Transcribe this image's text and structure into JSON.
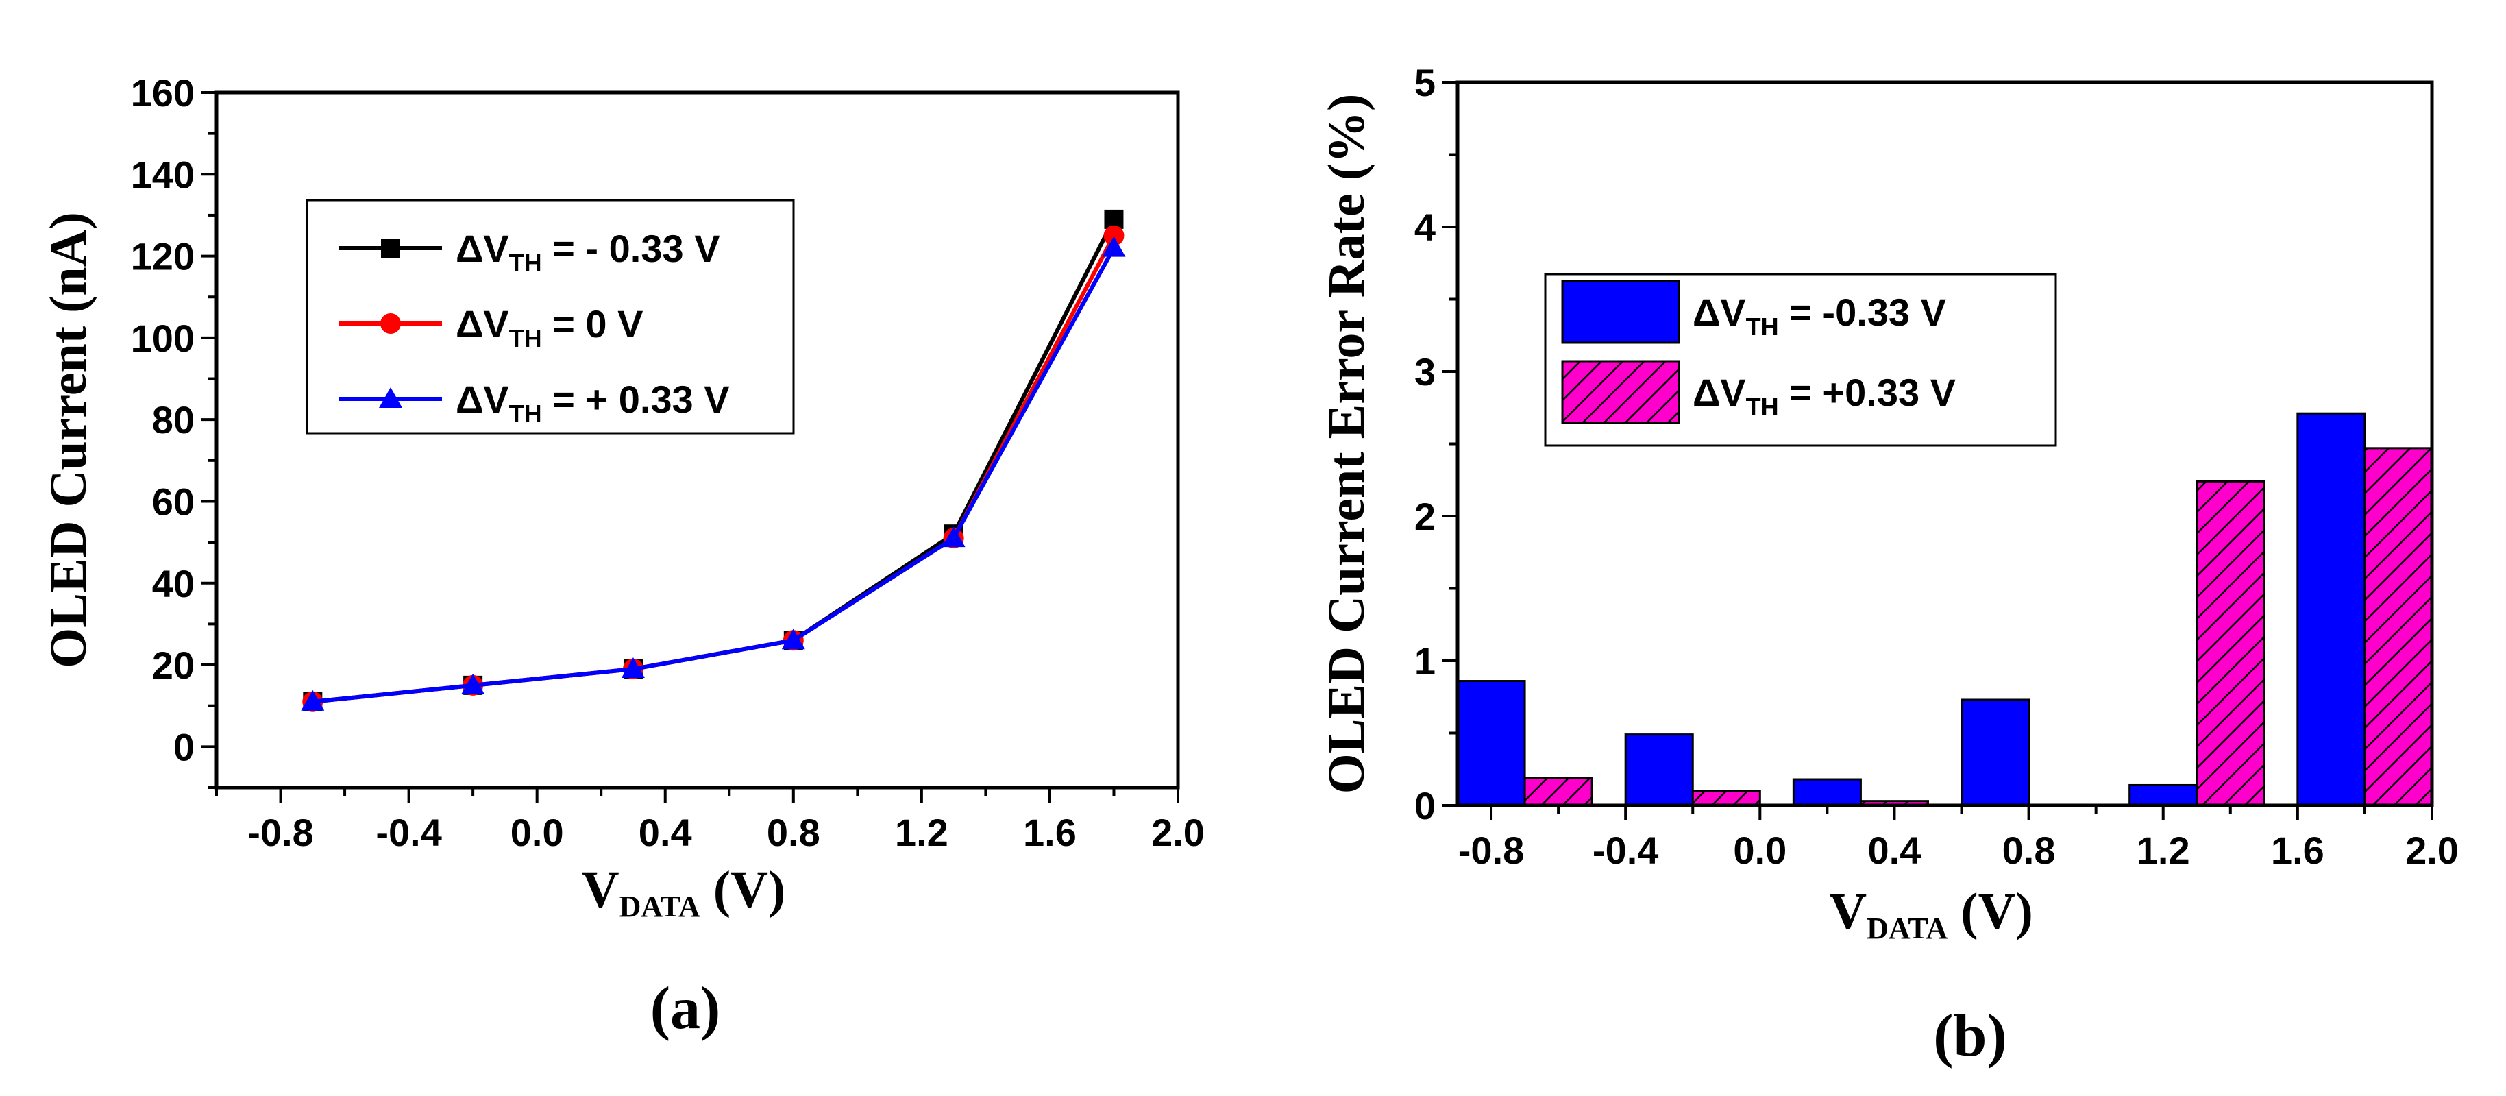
{
  "chart_data": [
    {
      "panel": "(a)",
      "type": "line",
      "xlabel": "V",
      "xlabel_sub": "DATA",
      "xlabel_unit": " (V)",
      "ylabel": "OLED Current (nA)",
      "xlim": [
        -1.0,
        2.0
      ],
      "ylim": [
        -10,
        160
      ],
      "xticks": [
        -0.8,
        -0.4,
        0.0,
        0.4,
        0.8,
        1.2,
        1.6,
        2.0
      ],
      "xtick_labels": [
        "-0.8",
        "-0.4",
        "0.0",
        "0.4",
        "0.8",
        "1.2",
        "1.6",
        "2.0"
      ],
      "yticks": [
        0,
        20,
        40,
        60,
        80,
        100,
        120,
        140,
        160
      ],
      "ytick_labels": [
        "0",
        "20",
        "40",
        "60",
        "80",
        "100",
        "120",
        "140",
        "160"
      ],
      "x": [
        -0.7,
        -0.2,
        0.3,
        0.8,
        1.3,
        1.8
      ],
      "series": [
        {
          "name_pre": "ΔV",
          "name_sub": "TH",
          "name_post": " = - 0.33 V",
          "color": "#000000",
          "marker": "square",
          "values": [
            11,
            15,
            19,
            26,
            52,
            129
          ]
        },
        {
          "name_pre": "ΔV",
          "name_sub": "TH",
          "name_post": " = 0 V",
          "color": "#ff0000",
          "marker": "circle",
          "values": [
            11,
            15,
            19,
            26,
            51,
            125
          ]
        },
        {
          "name_pre": "ΔV",
          "name_sub": "TH",
          "name_post": " = + 0.33 V",
          "color": "#0000ff",
          "marker": "triangle",
          "values": [
            11,
            15,
            19,
            26,
            51,
            122
          ]
        }
      ]
    },
    {
      "panel": "(b)",
      "type": "bar",
      "xlabel": "V",
      "xlabel_sub": "DATA",
      "xlabel_unit": " (V)",
      "ylabel": "OLED Current Error Rate (%)",
      "xlim": [
        -0.9,
        2.0
      ],
      "ylim": [
        0,
        5
      ],
      "xticks": [
        -0.8,
        -0.4,
        0.0,
        0.4,
        0.8,
        1.2,
        1.6,
        2.0
      ],
      "xtick_labels": [
        "-0.8",
        "-0.4",
        "0.0",
        "0.4",
        "0.8",
        "1.2",
        "1.6",
        "2.0"
      ],
      "yticks": [
        0,
        1,
        2,
        3,
        4,
        5
      ],
      "ytick_labels": [
        "0",
        "1",
        "2",
        "3",
        "4",
        "5"
      ],
      "x": [
        -0.7,
        -0.2,
        0.3,
        0.8,
        1.3,
        1.8
      ],
      "series": [
        {
          "name_pre": "ΔV",
          "name_sub": "TH",
          "name_post": " = -0.33 V",
          "color": "#0000ff",
          "pattern": "solid",
          "values": [
            0.86,
            0.49,
            0.18,
            0.73,
            0.14,
            2.71
          ]
        },
        {
          "name_pre": "ΔV",
          "name_sub": "TH",
          "name_post": " = +0.33 V",
          "color": "#ff00cc",
          "pattern": "hatch",
          "values": [
            0.19,
            0.1,
            0.03,
            0.0,
            2.24,
            2.47
          ]
        }
      ]
    }
  ]
}
